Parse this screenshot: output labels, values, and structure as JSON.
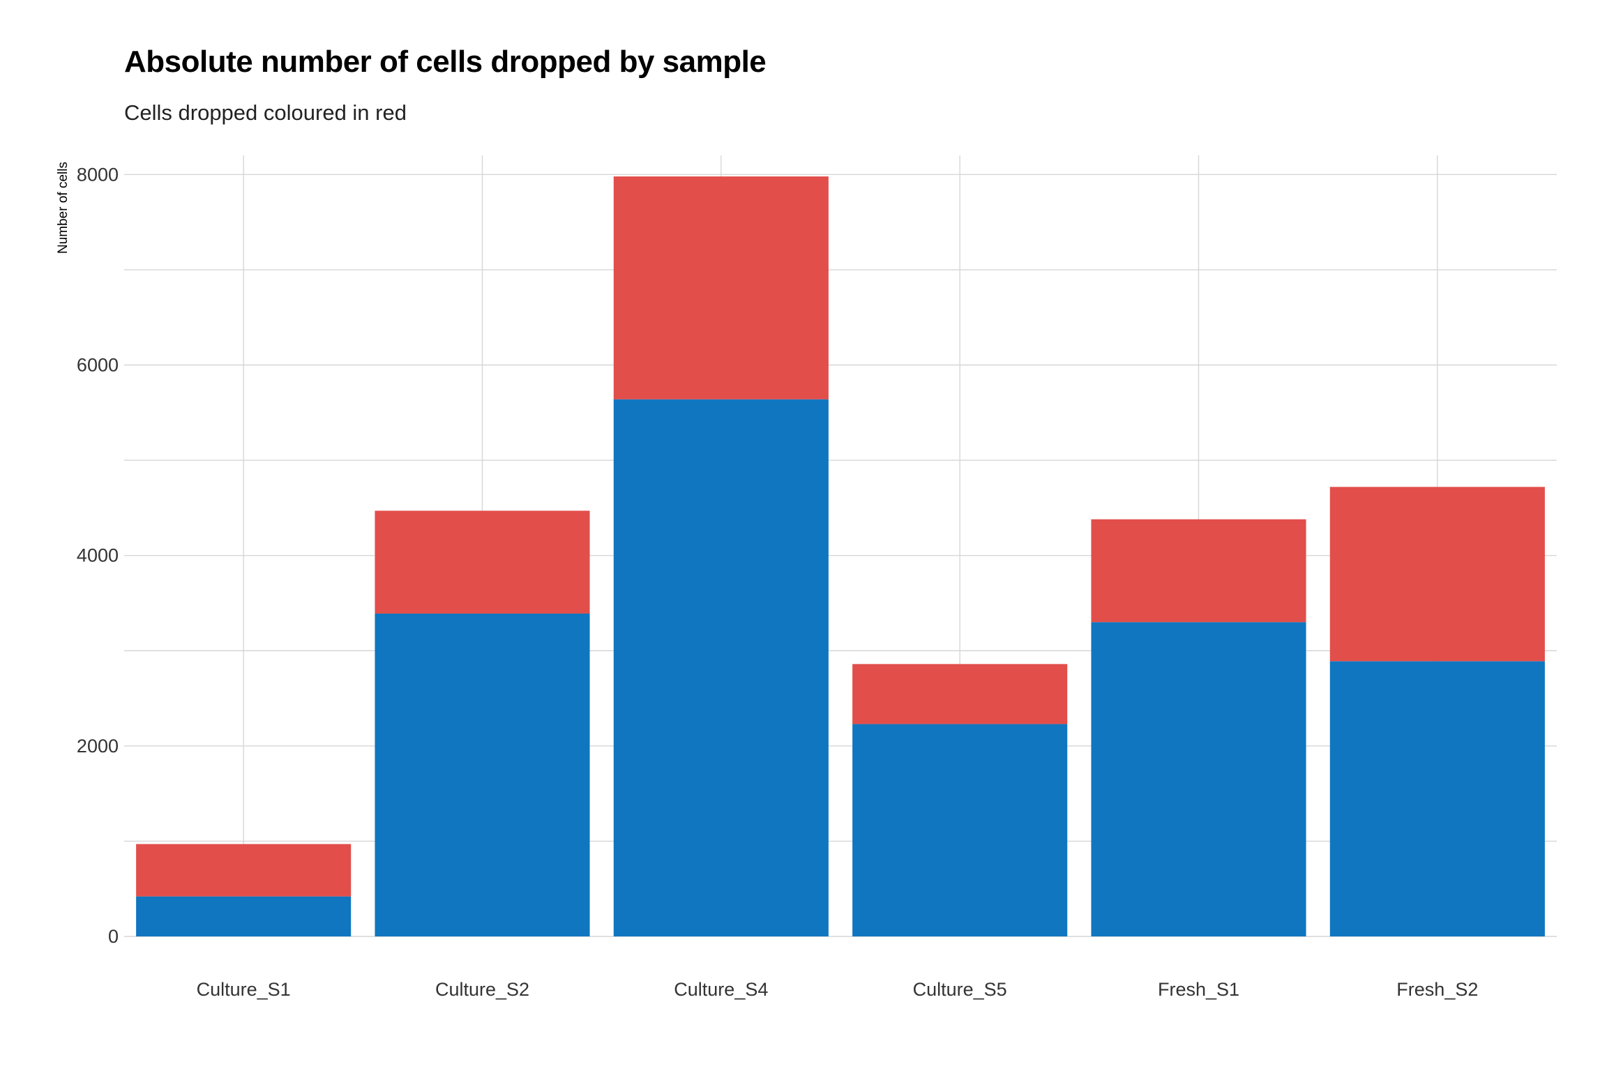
{
  "chart_data": {
    "type": "bar",
    "stacked": true,
    "title": "Absolute number of cells dropped by sample",
    "subtitle": "Cells dropped coloured in red",
    "xlabel": "",
    "ylabel": "Number of cells",
    "categories": [
      "Culture_S1",
      "Culture_S2",
      "Culture_S4",
      "Culture_S5",
      "Fresh_S1",
      "Fresh_S2"
    ],
    "series": [
      {
        "values": [
          420,
          3390,
          5640,
          2230,
          3300,
          2890
        ],
        "color": "#1076c0"
      },
      {
        "values": [
          550,
          1080,
          2340,
          630,
          1080,
          1830
        ],
        "color": "#e24e4a"
      }
    ],
    "ylim": [
      0,
      8200
    ],
    "yticks": [
      0,
      2000,
      4000,
      6000,
      8000
    ],
    "grid": true,
    "legend": "none"
  }
}
